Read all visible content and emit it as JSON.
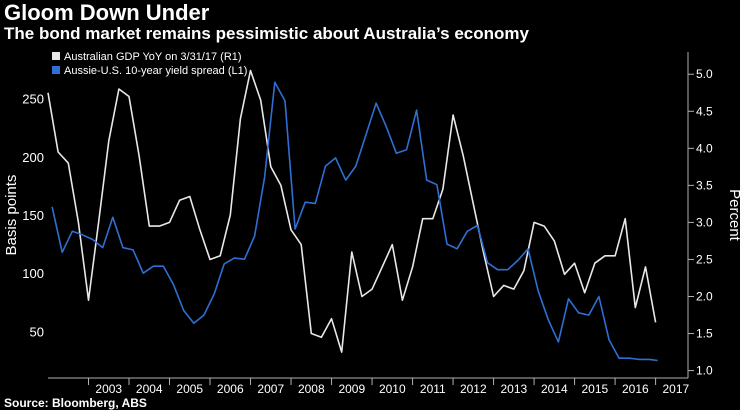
{
  "header": {
    "title": "Gloom Down Under",
    "subtitle": "The bond market remains pessimistic about Australia’s economy"
  },
  "footer": {
    "source": "Source: Bloomberg, ABS"
  },
  "colors": {
    "background": "#000000",
    "gdp_line": "#e8e8e8",
    "spread_line": "#2f6fd4",
    "axis": "#b0b0b0",
    "text": "#ffffff"
  },
  "chart_data": {
    "type": "line",
    "title": "Gloom Down Under",
    "subtitle": "The bond market remains pessimistic about Australia’s economy",
    "ylabel_left": "Basis points",
    "ylabel_right": "Percent",
    "ylim_left": [
      10,
      290
    ],
    "ylim_right": [
      0.9,
      5.3
    ],
    "yticks_left": [
      "50",
      "100",
      "150",
      "200",
      "250"
    ],
    "yticks_right": [
      "1.0",
      "1.5",
      "2.0",
      "2.5",
      "3.0",
      "3.5",
      "4.0",
      "4.5",
      "5.0"
    ],
    "x_categories": [
      "2003",
      "2004",
      "2005",
      "2006",
      "2007",
      "2008",
      "2009",
      "2010",
      "2011",
      "2012",
      "2013",
      "2014",
      "2015",
      "2016",
      "2017"
    ],
    "xlim": [
      2002.0,
      2017.8
    ],
    "grid": false,
    "legend_position": "top-left",
    "series": [
      {
        "name": "Australian GDP  YoY on 3/31/17 (R1)",
        "axis": "right",
        "color": "#e8e8e8",
        "points": [
          [
            2002.0,
            4.75
          ],
          [
            2002.25,
            3.95
          ],
          [
            2002.5,
            3.8
          ],
          [
            2002.75,
            3.0
          ],
          [
            2003.0,
            1.95
          ],
          [
            2003.25,
            3.0
          ],
          [
            2003.5,
            4.1
          ],
          [
            2003.75,
            4.8
          ],
          [
            2004.0,
            4.7
          ],
          [
            2004.25,
            3.9
          ],
          [
            2004.5,
            2.95
          ],
          [
            2004.75,
            2.95
          ],
          [
            2005.0,
            3.0
          ],
          [
            2005.25,
            3.3
          ],
          [
            2005.5,
            3.35
          ],
          [
            2005.75,
            2.9
          ],
          [
            2006.0,
            2.5
          ],
          [
            2006.25,
            2.55
          ],
          [
            2006.5,
            3.1
          ],
          [
            2006.75,
            4.4
          ],
          [
            2007.0,
            5.05
          ],
          [
            2007.25,
            4.65
          ],
          [
            2007.5,
            3.75
          ],
          [
            2007.75,
            3.5
          ],
          [
            2008.0,
            2.9
          ],
          [
            2008.25,
            2.7
          ],
          [
            2008.5,
            1.5
          ],
          [
            2008.75,
            1.45
          ],
          [
            2009.0,
            1.7
          ],
          [
            2009.25,
            1.25
          ],
          [
            2009.5,
            2.6
          ],
          [
            2009.75,
            2.0
          ],
          [
            2010.0,
            2.1
          ],
          [
            2010.25,
            2.4
          ],
          [
            2010.5,
            2.7
          ],
          [
            2010.75,
            1.95
          ],
          [
            2011.0,
            2.4
          ],
          [
            2011.25,
            3.05
          ],
          [
            2011.5,
            3.05
          ],
          [
            2011.75,
            3.45
          ],
          [
            2012.0,
            4.45
          ],
          [
            2012.25,
            3.9
          ],
          [
            2012.5,
            3.25
          ],
          [
            2012.75,
            2.6
          ],
          [
            2013.0,
            2.0
          ],
          [
            2013.25,
            2.15
          ],
          [
            2013.5,
            2.1
          ],
          [
            2013.75,
            2.35
          ],
          [
            2014.0,
            3.0
          ],
          [
            2014.25,
            2.95
          ],
          [
            2014.5,
            2.75
          ],
          [
            2014.75,
            2.3
          ],
          [
            2015.0,
            2.45
          ],
          [
            2015.25,
            2.05
          ],
          [
            2015.5,
            2.45
          ],
          [
            2015.75,
            2.55
          ],
          [
            2016.0,
            2.55
          ],
          [
            2016.25,
            3.05
          ],
          [
            2016.5,
            1.85
          ],
          [
            2016.75,
            2.4
          ],
          [
            2017.0,
            1.65
          ]
        ]
      },
      {
        "name": "Aussie-U.S. 10-year yield spread (L1)",
        "axis": "left",
        "color": "#2f6fd4",
        "points": [
          [
            2002.1,
            157
          ],
          [
            2002.35,
            118
          ],
          [
            2002.6,
            136
          ],
          [
            2002.85,
            133
          ],
          [
            2003.1,
            129
          ],
          [
            2003.35,
            122
          ],
          [
            2003.6,
            148
          ],
          [
            2003.85,
            122
          ],
          [
            2004.1,
            120
          ],
          [
            2004.35,
            100
          ],
          [
            2004.6,
            106
          ],
          [
            2004.85,
            106
          ],
          [
            2005.1,
            90
          ],
          [
            2005.35,
            68
          ],
          [
            2005.6,
            57
          ],
          [
            2005.85,
            64
          ],
          [
            2006.1,
            82
          ],
          [
            2006.35,
            108
          ],
          [
            2006.6,
            113
          ],
          [
            2006.85,
            112
          ],
          [
            2007.1,
            132
          ],
          [
            2007.35,
            183
          ],
          [
            2007.6,
            264
          ],
          [
            2007.85,
            248
          ],
          [
            2008.1,
            138
          ],
          [
            2008.35,
            161
          ],
          [
            2008.6,
            160
          ],
          [
            2008.85,
            192
          ],
          [
            2009.1,
            199
          ],
          [
            2009.35,
            180
          ],
          [
            2009.6,
            192
          ],
          [
            2009.85,
            219
          ],
          [
            2010.1,
            246
          ],
          [
            2010.35,
            226
          ],
          [
            2010.6,
            203
          ],
          [
            2010.85,
            206
          ],
          [
            2011.1,
            240
          ],
          [
            2011.35,
            180
          ],
          [
            2011.6,
            176
          ],
          [
            2011.85,
            125
          ],
          [
            2012.1,
            121
          ],
          [
            2012.35,
            136
          ],
          [
            2012.6,
            141
          ],
          [
            2012.85,
            109
          ],
          [
            2013.1,
            103
          ],
          [
            2013.35,
            103
          ],
          [
            2013.6,
            111
          ],
          [
            2013.85,
            121
          ],
          [
            2014.1,
            85
          ],
          [
            2014.35,
            60
          ],
          [
            2014.6,
            41
          ],
          [
            2014.85,
            78
          ],
          [
            2015.1,
            66
          ],
          [
            2015.35,
            64
          ],
          [
            2015.6,
            80
          ],
          [
            2015.85,
            43
          ],
          [
            2016.1,
            27
          ],
          [
            2016.35,
            27
          ],
          [
            2016.6,
            26
          ],
          [
            2016.85,
            26
          ],
          [
            2017.05,
            25
          ]
        ]
      }
    ]
  }
}
